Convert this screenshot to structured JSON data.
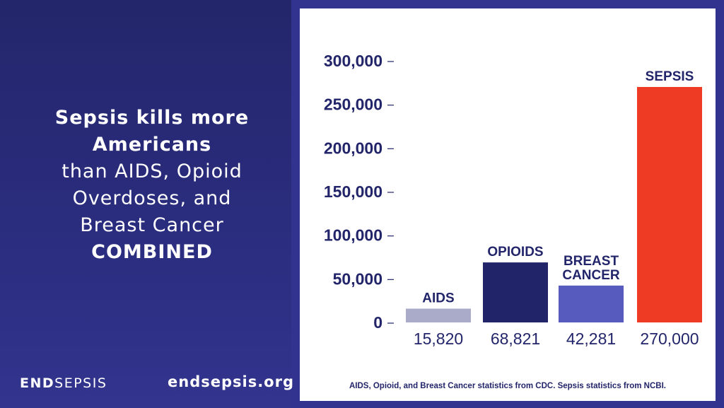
{
  "headline": {
    "line1": "Sepsis kills more",
    "line2": "Americans",
    "line3": "than AIDS, Opioid",
    "line4": "Overdoses, and",
    "line5": "Breast Cancer",
    "line6": "COMBINED"
  },
  "logo": {
    "bold": "END",
    "regular": "SEPSIS"
  },
  "website": "endsepsis.org",
  "footnote": "AIDS, Opioid, and Breast Cancer statistics from CDC. Sepsis statistics from NBCI.",
  "chart_data": {
    "type": "bar",
    "categories": [
      "AIDS",
      "OPIOIDS",
      "BREAST CANCER",
      "SEPSIS"
    ],
    "category_lines": [
      [
        "AIDS"
      ],
      [
        "OPIOIDS"
      ],
      [
        "BREAST",
        "CANCER"
      ],
      [
        "SEPSIS"
      ]
    ],
    "values": [
      15820,
      68821,
      42281,
      270000
    ],
    "value_labels": [
      "15,820",
      "68,821",
      "42,281",
      "270,000"
    ],
    "colors": [
      "#a9abc8",
      "#22246a",
      "#575bbd",
      "#ee3b24"
    ],
    "yticks": [
      0,
      50000,
      100000,
      150000,
      200000,
      250000,
      300000
    ],
    "ytick_labels": [
      "0",
      "50,000",
      "100,000",
      "150,000",
      "200,000",
      "250,000",
      "300,000"
    ],
    "ylim": [
      0,
      300000
    ],
    "grid": false,
    "title": "",
    "xlabel": "",
    "ylabel": ""
  }
}
